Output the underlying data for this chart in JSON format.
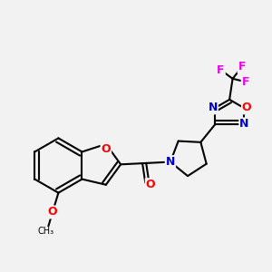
{
  "bg_color": "#f2f2f2",
  "bond_color": "#000000",
  "bond_width": 1.5,
  "atom_colors": {
    "O": "#ff0000",
    "N": "#0000cc",
    "F": "#ee00ee",
    "C": "#000000"
  },
  "font_size_atom": 9,
  "font_size_small": 8
}
